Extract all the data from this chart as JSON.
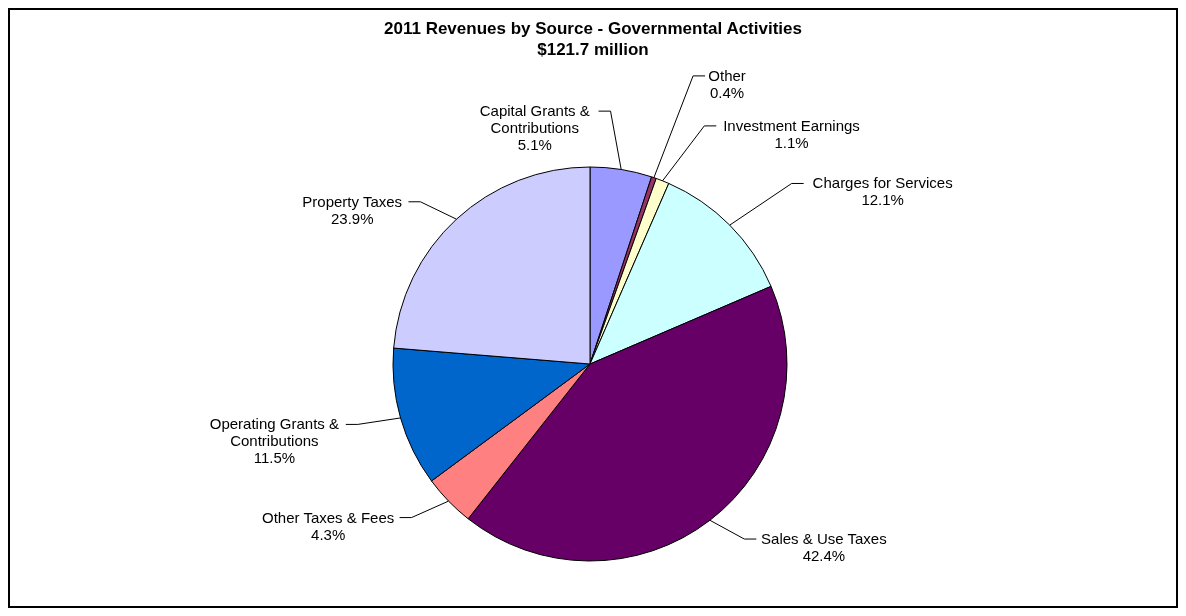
{
  "chart_data": {
    "type": "pie",
    "title": "2011 Revenues by Source - Governmental Activities",
    "subtitle": "$121.7 million",
    "categories": [
      "Capital Grants & Contributions",
      "Other",
      "Investment Earnings",
      "Charges for Services",
      "Sales & Use Taxes",
      "Other Taxes & Fees",
      "Operating Grants & Contributions",
      "Property Taxes"
    ],
    "values": [
      5.1,
      0.4,
      1.1,
      12.1,
      42.4,
      4.3,
      11.5,
      23.9
    ],
    "value_labels": [
      "5.1%",
      "0.4%",
      "1.1%",
      "12.1%",
      "42.4%",
      "4.3%",
      "11.5%",
      "23.9%"
    ],
    "colors": [
      "#9999ff",
      "#993366",
      "#ffffcc",
      "#ccffff",
      "#660066",
      "#ff8080",
      "#0066cc",
      "#ccccff"
    ],
    "legend": false
  }
}
